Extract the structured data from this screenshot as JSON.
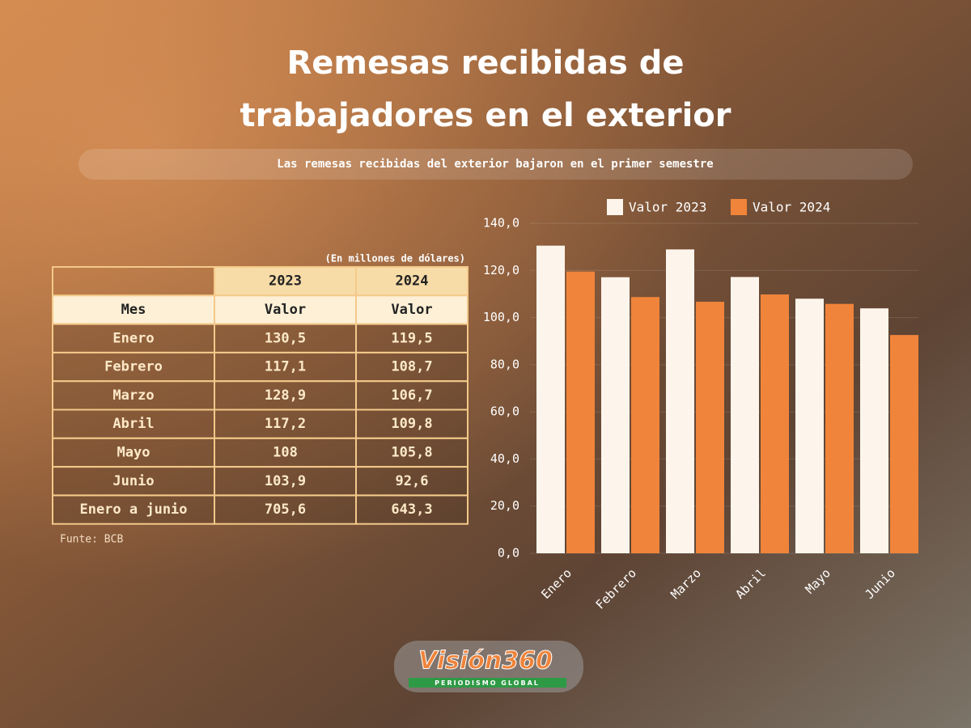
{
  "header": {
    "title_line1": "Remesas recibidas de",
    "title_line2": "trabajadores en el exterior",
    "subtitle": "Las remesas recibidas del exterior bajaron en el primer semestre"
  },
  "table": {
    "note": "(En millones de dólares)",
    "years": [
      "2023",
      "2024"
    ],
    "columns": [
      "Mes",
      "Valor",
      "Valor"
    ],
    "rows": [
      [
        "Enero",
        "130,5",
        "119,5"
      ],
      [
        "Febrero",
        "117,1",
        "108,7"
      ],
      [
        "Marzo",
        "128,9",
        "106,7"
      ],
      [
        "Abril",
        "117,2",
        "109,8"
      ],
      [
        "Mayo",
        "108",
        "105,8"
      ],
      [
        "Junio",
        "103,9",
        "92,6"
      ],
      [
        "Enero a junio",
        "705,6",
        "643,3"
      ]
    ],
    "source": "Funte: BCB"
  },
  "chart_data": {
    "type": "bar",
    "categories": [
      "Enero",
      "Febrero",
      "Marzo",
      "Abril",
      "Mayo",
      "Junio"
    ],
    "series": [
      {
        "name": "Valor 2023",
        "color": "#fdf5ec",
        "values": [
          130.5,
          117.1,
          128.9,
          117.2,
          108,
          103.9
        ]
      },
      {
        "name": "Valor 2024",
        "color": "#f0843a",
        "values": [
          119.5,
          108.7,
          106.7,
          109.8,
          105.8,
          92.6
        ]
      }
    ],
    "ylim": [
      0,
      140
    ],
    "yticks": [
      {
        "value": 0,
        "label": "0,0"
      },
      {
        "value": 20,
        "label": "20,0"
      },
      {
        "value": 40,
        "label": "40,0"
      },
      {
        "value": 60,
        "label": "60,0"
      },
      {
        "value": 80,
        "label": "80,0"
      },
      {
        "value": 100,
        "label": "100,0"
      },
      {
        "value": 120,
        "label": "120,0"
      },
      {
        "value": 140,
        "label": "140,0"
      }
    ],
    "grid": true,
    "legend": "top"
  },
  "logo": {
    "brand": "Visión360",
    "tagline": "PERIODISMO GLOBAL"
  }
}
